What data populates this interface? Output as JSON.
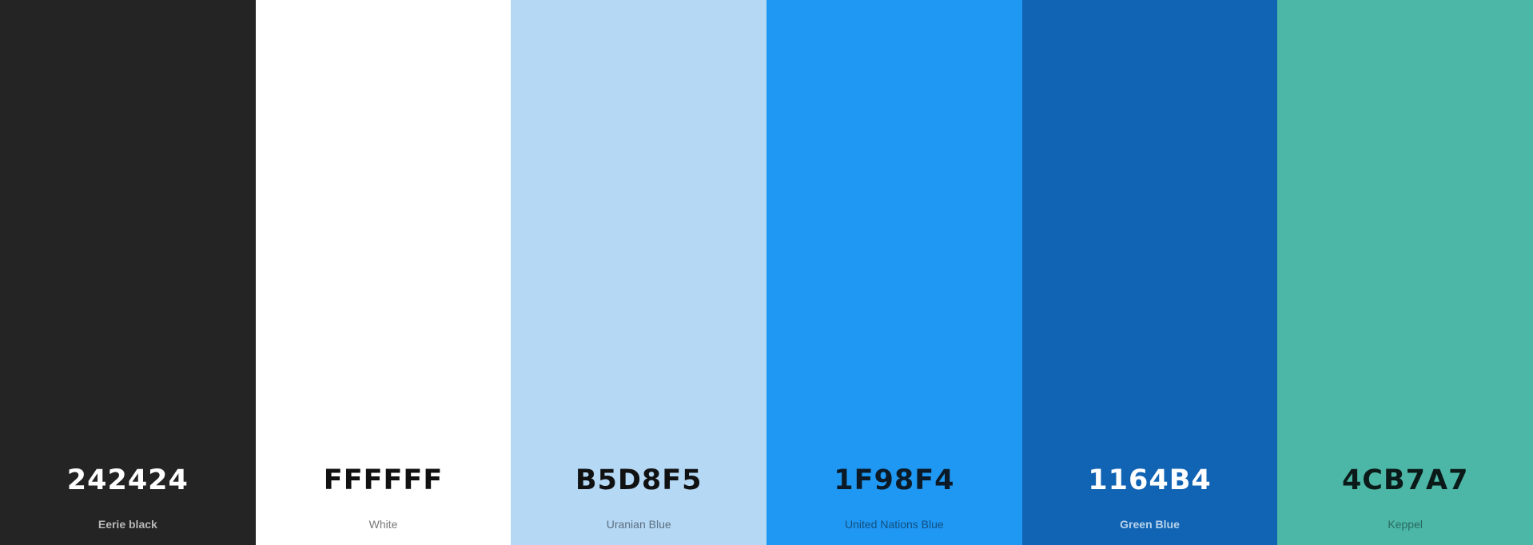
{
  "palette": {
    "swatches": [
      {
        "hex": "242424",
        "name": "Eerie black",
        "color": "#242424",
        "hex_text_color": "#ffffff",
        "name_text_color": "#b8b8b8",
        "name_bold": true
      },
      {
        "hex": "FFFFFF",
        "name": "White",
        "color": "#ffffff",
        "hex_text_color": "#111111",
        "name_text_color": "#777777",
        "name_bold": false
      },
      {
        "hex": "B5D8F5",
        "name": "Uranian Blue",
        "color": "#b5d8f5",
        "hex_text_color": "#111111",
        "name_text_color": "#5c6f80",
        "name_bold": false
      },
      {
        "hex": "1F98F4",
        "name": "United Nations Blue",
        "color": "#1f98f4",
        "hex_text_color": "#0b1a26",
        "name_text_color": "#114f80",
        "name_bold": false
      },
      {
        "hex": "1164B4",
        "name": "Green Blue",
        "color": "#1164b4",
        "hex_text_color": "#ffffff",
        "name_text_color": "#b9d3ea",
        "name_bold": true
      },
      {
        "hex": "4CB7A7",
        "name": "Keppel",
        "color": "#4cb7a7",
        "hex_text_color": "#0b1a18",
        "name_text_color": "#2a6a61",
        "name_bold": false
      }
    ]
  }
}
